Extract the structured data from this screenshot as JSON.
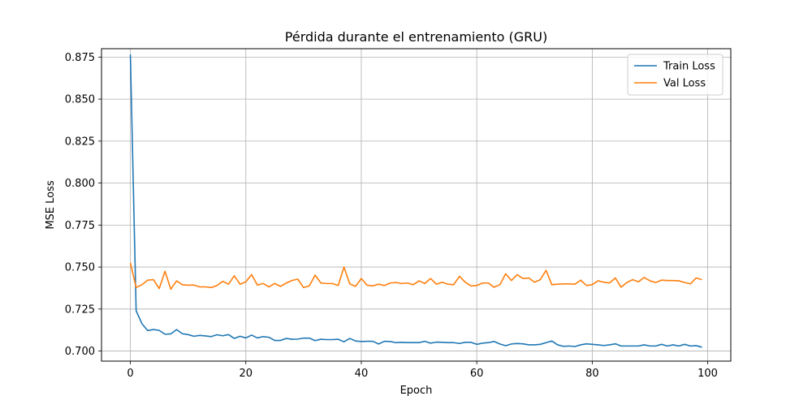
{
  "chart_data": {
    "type": "line",
    "title": "Pérdida durante el entrenamiento (GRU)",
    "xlabel": "Epoch",
    "ylabel": "MSE Loss",
    "xlim": [
      -5,
      104
    ],
    "ylim": [
      0.694,
      0.88
    ],
    "xticks": [
      0,
      20,
      40,
      60,
      80,
      100
    ],
    "xtick_labels": [
      "0",
      "20",
      "40",
      "60",
      "80",
      "100"
    ],
    "yticks": [
      0.7,
      0.725,
      0.75,
      0.775,
      0.8,
      0.825,
      0.85,
      0.875
    ],
    "ytick_labels": [
      "0.700",
      "0.725",
      "0.750",
      "0.775",
      "0.800",
      "0.825",
      "0.850",
      "0.875"
    ],
    "grid": true,
    "legend_position": "top-right",
    "series": [
      {
        "name": "Train Loss",
        "color": "#1f77b4",
        "values": [
          0.8765,
          0.724,
          0.7163,
          0.7122,
          0.7128,
          0.7123,
          0.71,
          0.7102,
          0.7128,
          0.7103,
          0.7098,
          0.7088,
          0.7093,
          0.709,
          0.7086,
          0.7097,
          0.7091,
          0.7098,
          0.7075,
          0.7088,
          0.7078,
          0.7095,
          0.7078,
          0.7086,
          0.7082,
          0.7063,
          0.7063,
          0.7075,
          0.707,
          0.7071,
          0.7077,
          0.7077,
          0.7062,
          0.707,
          0.7068,
          0.7068,
          0.707,
          0.7055,
          0.7075,
          0.706,
          0.7057,
          0.7058,
          0.7058,
          0.7042,
          0.7058,
          0.7057,
          0.705,
          0.7052,
          0.705,
          0.705,
          0.705,
          0.7058,
          0.7047,
          0.7053,
          0.7052,
          0.705,
          0.705,
          0.7045,
          0.7052,
          0.7052,
          0.704,
          0.7047,
          0.705,
          0.7057,
          0.7042,
          0.7032,
          0.7042,
          0.7045,
          0.7043,
          0.7037,
          0.7037,
          0.704,
          0.705,
          0.706,
          0.7037,
          0.7028,
          0.703,
          0.7027,
          0.7037,
          0.7043,
          0.704,
          0.7037,
          0.7033,
          0.7037,
          0.7043,
          0.703,
          0.703,
          0.703,
          0.703,
          0.7037,
          0.703,
          0.703,
          0.704,
          0.703,
          0.7037,
          0.703,
          0.704,
          0.703,
          0.7032,
          0.7023
        ]
      },
      {
        "name": "Val Loss",
        "color": "#ff7f0e",
        "values": [
          0.7525,
          0.7378,
          0.7395,
          0.7422,
          0.7425,
          0.7372,
          0.7475,
          0.7368,
          0.7418,
          0.7395,
          0.7392,
          0.7393,
          0.7382,
          0.7382,
          0.7378,
          0.739,
          0.7415,
          0.7398,
          0.7448,
          0.7398,
          0.7412,
          0.7455,
          0.7393,
          0.7402,
          0.7382,
          0.7402,
          0.7385,
          0.7405,
          0.742,
          0.7428,
          0.7378,
          0.7388,
          0.7452,
          0.7405,
          0.7402,
          0.7402,
          0.739,
          0.75,
          0.74,
          0.7385,
          0.7432,
          0.7392,
          0.7388,
          0.7398,
          0.739,
          0.7405,
          0.7408,
          0.7402,
          0.7405,
          0.7395,
          0.7418,
          0.7402,
          0.7432,
          0.7398,
          0.741,
          0.7398,
          0.7395,
          0.7445,
          0.741,
          0.7388,
          0.739,
          0.7405,
          0.7405,
          0.738,
          0.7395,
          0.746,
          0.742,
          0.7455,
          0.7432,
          0.7435,
          0.741,
          0.7425,
          0.748,
          0.7395,
          0.7398,
          0.74,
          0.74,
          0.7398,
          0.7422,
          0.739,
          0.7395,
          0.7418,
          0.741,
          0.7405,
          0.7435,
          0.738,
          0.7408,
          0.7425,
          0.7412,
          0.7438,
          0.7418,
          0.7408,
          0.7422,
          0.742,
          0.742,
          0.7418,
          0.7408,
          0.74,
          0.7435,
          0.7425
        ]
      }
    ]
  }
}
